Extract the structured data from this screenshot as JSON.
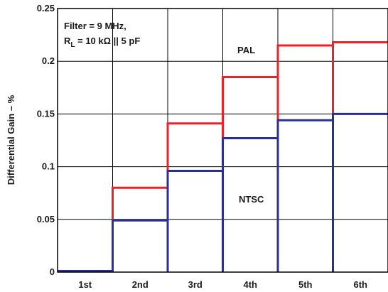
{
  "chart_data": {
    "type": "line",
    "step": true,
    "categories": [
      "1st",
      "2nd",
      "3rd",
      "4th",
      "5th",
      "6th"
    ],
    "series": [
      {
        "name": "PAL",
        "color": "#e8232a",
        "values": [
          0.001,
          0.08,
          0.141,
          0.185,
          0.215,
          0.218
        ]
      },
      {
        "name": "NTSC",
        "color": "#2b2f8f",
        "values": [
          0.001,
          0.049,
          0.096,
          0.127,
          0.144,
          0.15
        ]
      }
    ],
    "ylabel": "Differential Gain – %",
    "xlabel": "",
    "ylim": [
      0,
      0.25
    ],
    "yticks": [
      "0",
      "0.05",
      "0.1",
      "0.15",
      "0.2",
      "0.25"
    ],
    "grid": true,
    "annotation": {
      "line1": "Filter = 9 MHz,",
      "line2_prefix": "R",
      "line2_sub": "L",
      "line2_rest": " = 10 kΩ || 5 pF"
    }
  }
}
